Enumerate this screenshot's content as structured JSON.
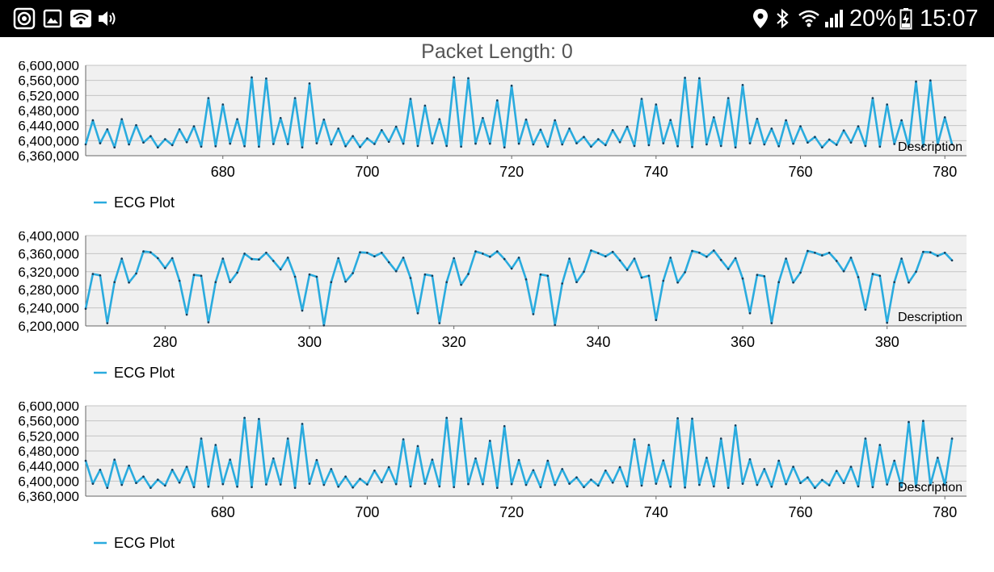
{
  "status_bar": {
    "battery": "20%",
    "time": "15:07",
    "left_icons": [
      "screen-record-icon",
      "gallery-icon",
      "wifi-share-icon",
      "volume-icon"
    ],
    "right_icons": [
      "location-icon",
      "bluetooth-icon",
      "wifi-icon",
      "signal-icon",
      "battery-charging-icon"
    ]
  },
  "header": {
    "label": "Packet Length:",
    "value": "0"
  },
  "colors": {
    "series": "#2aabde",
    "plot_bg": "#f0f0f0",
    "grid": "#c4c4c4",
    "axis": "#666666"
  },
  "chart_data": [
    {
      "type": "line",
      "title": "",
      "description": "Description",
      "grid": true,
      "legend_position": "bottom-left",
      "ylim": [
        6360000,
        6600000
      ],
      "xlim": [
        661,
        783
      ],
      "y_ticks": [
        6360000,
        6400000,
        6440000,
        6480000,
        6520000,
        6560000,
        6600000
      ],
      "y_tick_labels": [
        "6,360,000",
        "6,400,000",
        "6,440,000",
        "6,480,000",
        "6,520,000",
        "6,560,000",
        "6,600,000"
      ],
      "x_ticks": [
        680,
        700,
        720,
        740,
        760,
        780
      ],
      "x_tick_labels": [
        "680",
        "700",
        "720",
        "740",
        "760",
        "780"
      ],
      "series": [
        {
          "name": "ECG Plot",
          "x_start": 661,
          "values": [
            6390000,
            6454000,
            6393000,
            6430000,
            6382000,
            6457000,
            6390000,
            6441000,
            6395000,
            6412000,
            6382000,
            6404000,
            6388000,
            6430000,
            6396000,
            6438000,
            6384000,
            6513000,
            6385000,
            6496000,
            6392000,
            6457000,
            6385000,
            6568000,
            6384000,
            6565000,
            6391000,
            6460000,
            6391000,
            6513000,
            6382000,
            6552000,
            6393000,
            6456000,
            6390000,
            6432000,
            6385000,
            6412000,
            6383000,
            6406000,
            6391000,
            6428000,
            6397000,
            6437000,
            6392000,
            6511000,
            6386000,
            6493000,
            6393000,
            6457000,
            6386000,
            6568000,
            6384000,
            6566000,
            6392000,
            6460000,
            6392000,
            6507000,
            6382000,
            6546000,
            6392000,
            6456000,
            6390000,
            6429000,
            6384000,
            6454000,
            6390000,
            6432000,
            6393000,
            6410000,
            6384000,
            6404000,
            6388000,
            6428000,
            6396000,
            6437000,
            6386000,
            6511000,
            6388000,
            6496000,
            6393000,
            6455000,
            6385000,
            6567000,
            6383000,
            6566000,
            6390000,
            6462000,
            6386000,
            6513000,
            6382000,
            6548000,
            6393000,
            6458000,
            6390000,
            6432000,
            6385000,
            6454000,
            6392000,
            6438000,
            6395000,
            6410000,
            6382000,
            6403000,
            6389000,
            6427000,
            6395000,
            6438000,
            6386000,
            6513000,
            6384000,
            6496000,
            6391000,
            6454000,
            6384000,
            6557000,
            6384000,
            6560000,
            6390000,
            6462000,
            6390000
          ]
        }
      ]
    },
    {
      "type": "line",
      "title": "",
      "description": "Description",
      "grid": true,
      "legend_position": "bottom-left",
      "ylim": [
        6200000,
        6400000
      ],
      "xlim": [
        269,
        391
      ],
      "y_ticks": [
        6200000,
        6240000,
        6280000,
        6320000,
        6360000,
        6400000
      ],
      "y_tick_labels": [
        "6,200,000",
        "6,240,000",
        "6,280,000",
        "6,320,000",
        "6,360,000",
        "6,400,000"
      ],
      "x_ticks": [
        280,
        300,
        320,
        340,
        360,
        380
      ],
      "x_tick_labels": [
        "280",
        "300",
        "320",
        "340",
        "360",
        "380"
      ],
      "series": [
        {
          "name": "ECG Plot",
          "x_start": 269,
          "values": [
            6238000,
            6315000,
            6312000,
            6206000,
            6297000,
            6349000,
            6296000,
            6316000,
            6365000,
            6363000,
            6350000,
            6328000,
            6350000,
            6300000,
            6225000,
            6313000,
            6311000,
            6208000,
            6297000,
            6349000,
            6297000,
            6318000,
            6360000,
            6348000,
            6347000,
            6362000,
            6344000,
            6325000,
            6351000,
            6309000,
            6234000,
            6314000,
            6309000,
            6201000,
            6297000,
            6350000,
            6298000,
            6317000,
            6363000,
            6362000,
            6354000,
            6362000,
            6341000,
            6321000,
            6351000,
            6306000,
            6228000,
            6314000,
            6311000,
            6206000,
            6297000,
            6350000,
            6291000,
            6315000,
            6365000,
            6360000,
            6353000,
            6365000,
            6348000,
            6327000,
            6351000,
            6303000,
            6226000,
            6314000,
            6311000,
            6202000,
            6294000,
            6349000,
            6297000,
            6320000,
            6367000,
            6361000,
            6354000,
            6364000,
            6345000,
            6324000,
            6349000,
            6307000,
            6311000,
            6213000,
            6300000,
            6351000,
            6296000,
            6319000,
            6366000,
            6362000,
            6353000,
            6367000,
            6346000,
            6326000,
            6350000,
            6305000,
            6228000,
            6313000,
            6310000,
            6206000,
            6297000,
            6349000,
            6296000,
            6318000,
            6366000,
            6362000,
            6356000,
            6362000,
            6344000,
            6321000,
            6351000,
            6308000,
            6236000,
            6315000,
            6311000,
            6207000,
            6297000,
            6349000,
            6296000,
            6320000,
            6364000,
            6363000,
            6355000,
            6362000,
            6345000
          ]
        }
      ]
    },
    {
      "type": "line",
      "title": "",
      "description": "Description",
      "grid": true,
      "legend_position": "bottom-left",
      "ylim": [
        6360000,
        6600000
      ],
      "xlim": [
        661,
        783
      ],
      "y_ticks": [
        6360000,
        6400000,
        6440000,
        6480000,
        6520000,
        6560000,
        6600000
      ],
      "y_tick_labels": [
        "6,360,000",
        "6,400,000",
        "6,440,000",
        "6,480,000",
        "6,520,000",
        "6,560,000",
        "6,600,000"
      ],
      "x_ticks": [
        680,
        700,
        720,
        740,
        760,
        780
      ],
      "x_tick_labels": [
        "680",
        "700",
        "720",
        "740",
        "760",
        "780"
      ],
      "series": [
        {
          "name": "ECG Plot",
          "x_start": 661,
          "values": [
            6454000,
            6393000,
            6430000,
            6382000,
            6457000,
            6390000,
            6441000,
            6395000,
            6412000,
            6382000,
            6404000,
            6388000,
            6430000,
            6396000,
            6438000,
            6384000,
            6513000,
            6385000,
            6496000,
            6392000,
            6457000,
            6385000,
            6568000,
            6384000,
            6565000,
            6391000,
            6460000,
            6391000,
            6513000,
            6382000,
            6552000,
            6393000,
            6456000,
            6390000,
            6432000,
            6385000,
            6412000,
            6383000,
            6406000,
            6391000,
            6428000,
            6397000,
            6437000,
            6392000,
            6511000,
            6386000,
            6493000,
            6393000,
            6457000,
            6386000,
            6568000,
            6384000,
            6566000,
            6392000,
            6460000,
            6392000,
            6507000,
            6382000,
            6546000,
            6392000,
            6456000,
            6390000,
            6429000,
            6384000,
            6454000,
            6390000,
            6432000,
            6393000,
            6410000,
            6384000,
            6404000,
            6388000,
            6428000,
            6396000,
            6437000,
            6386000,
            6511000,
            6388000,
            6496000,
            6393000,
            6455000,
            6385000,
            6567000,
            6383000,
            6566000,
            6390000,
            6462000,
            6386000,
            6513000,
            6382000,
            6548000,
            6393000,
            6458000,
            6390000,
            6432000,
            6385000,
            6454000,
            6392000,
            6438000,
            6395000,
            6410000,
            6382000,
            6403000,
            6389000,
            6427000,
            6395000,
            6438000,
            6386000,
            6513000,
            6384000,
            6496000,
            6391000,
            6454000,
            6384000,
            6557000,
            6384000,
            6560000,
            6390000,
            6462000,
            6390000,
            6513000
          ]
        }
      ]
    }
  ]
}
